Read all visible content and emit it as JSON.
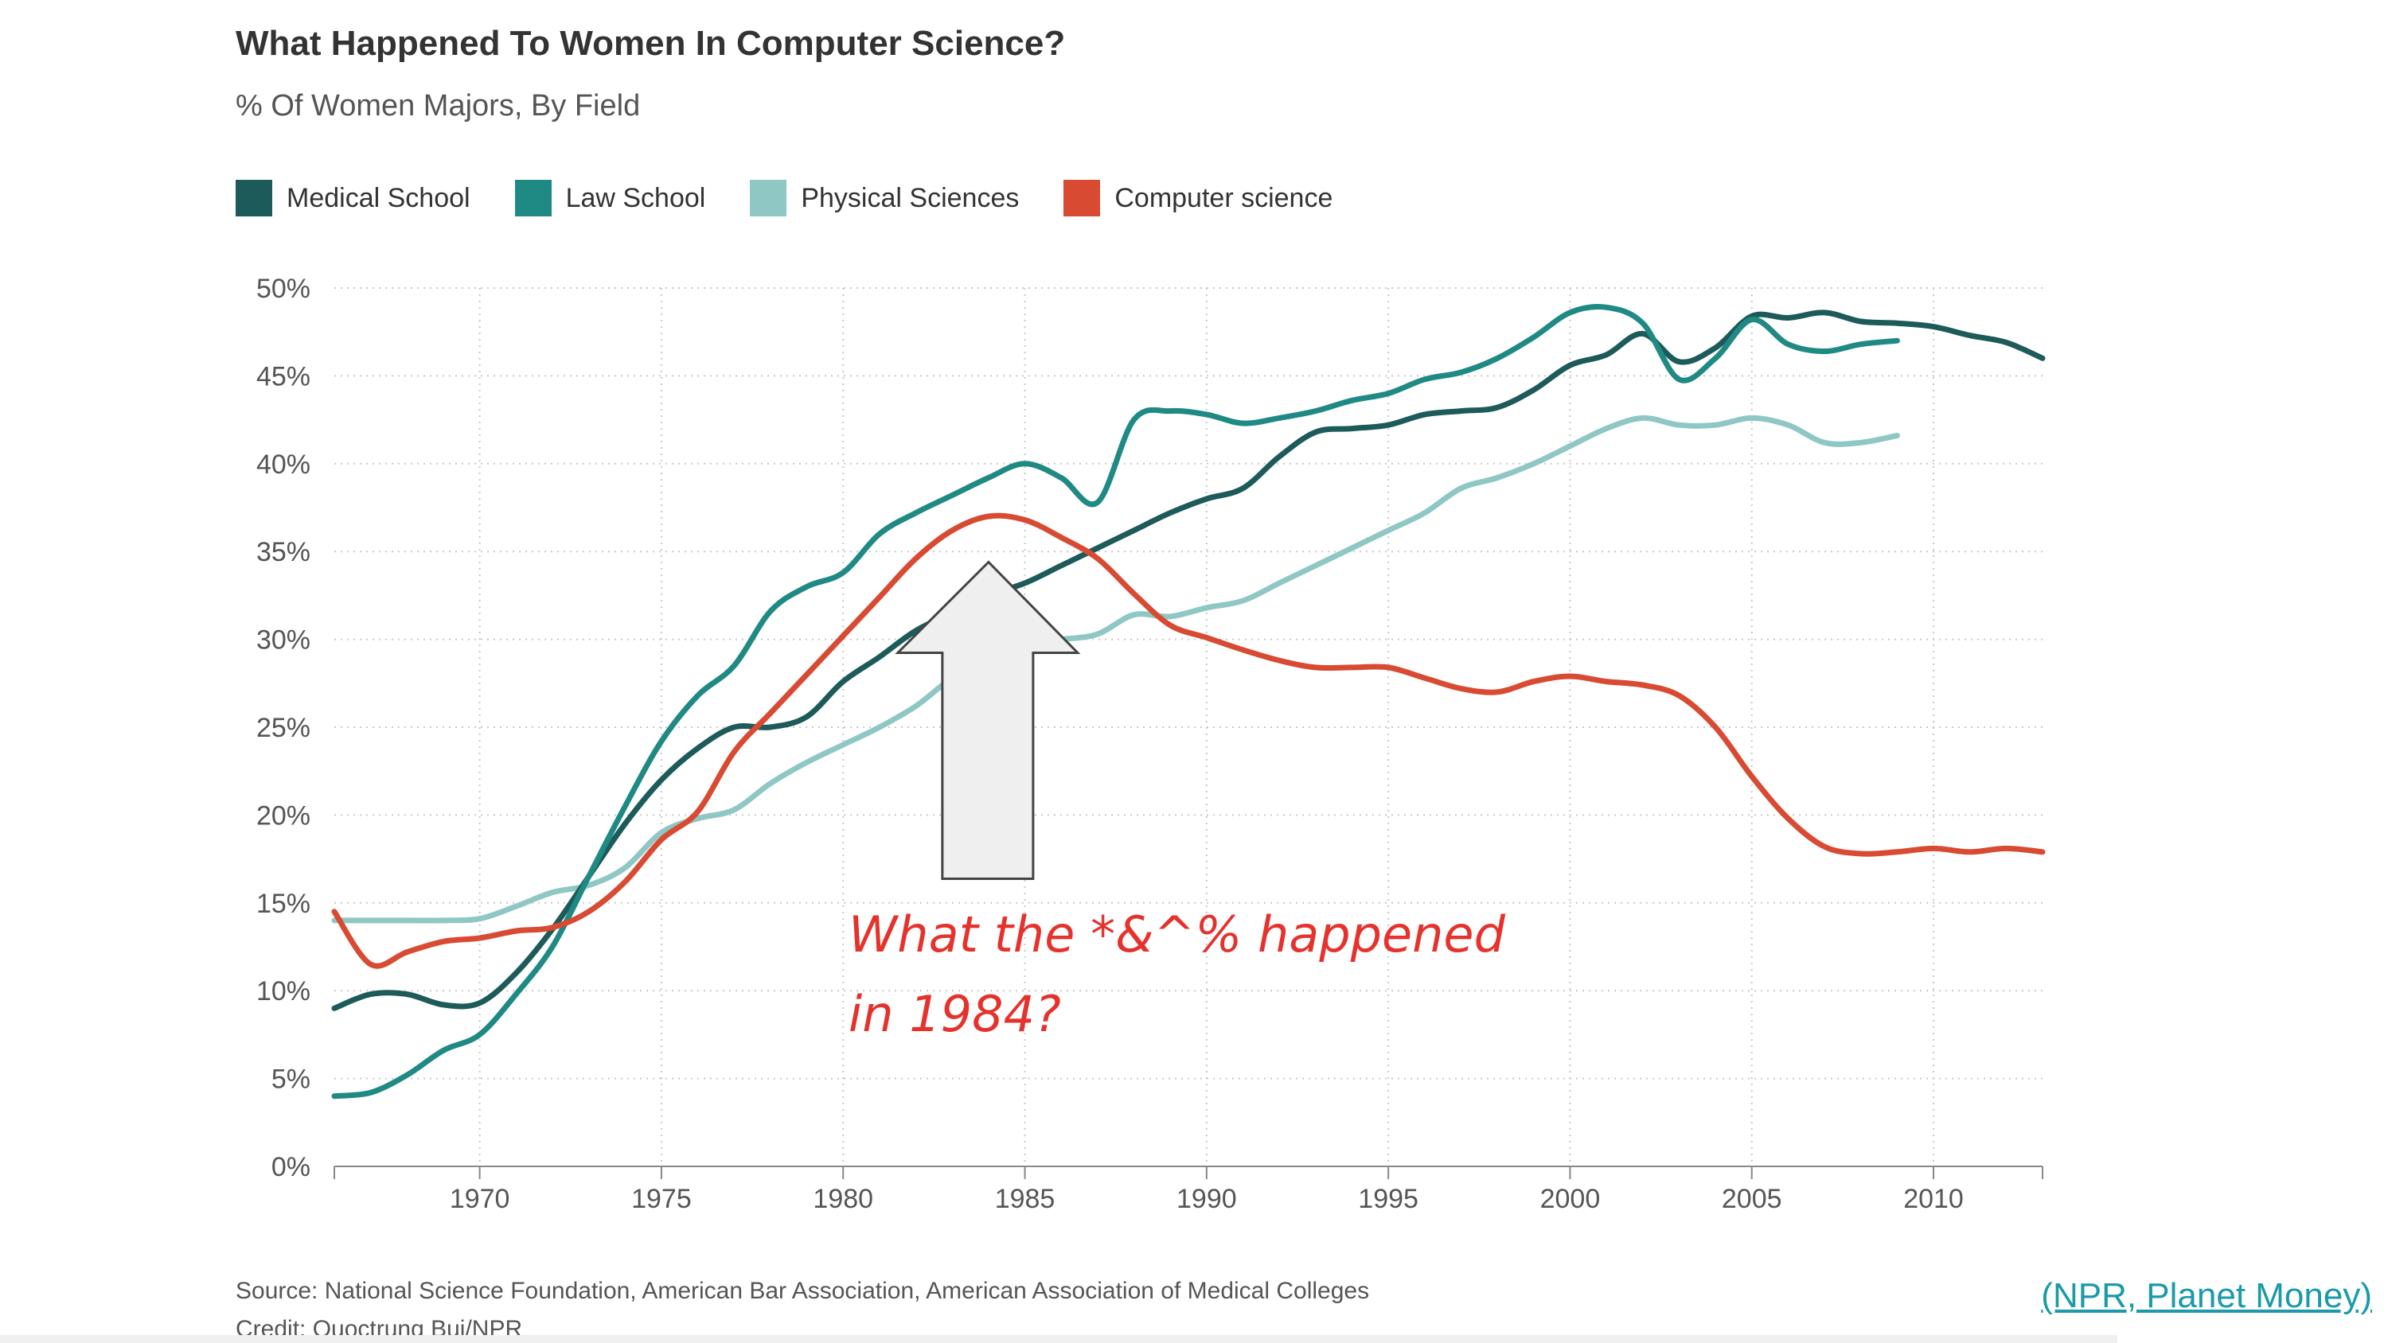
{
  "title": "What Happened To Women In Computer Science?",
  "subtitle": "% Of Women Majors, By Field",
  "source": "Source: National Science Foundation, American Bar Association, American Association of Medical Colleges",
  "credit": "Credit: Quoctrung Bui/NPR",
  "link_text": "(NPR, Planet Money)",
  "annotation": [
    "What the *&^% happened",
    "in 1984?"
  ],
  "colors": {
    "medical": "#1c5b5a",
    "law": "#1f8a84",
    "physical": "#8fc7c4",
    "cs": "#d84a32",
    "annotation": "#e5322d"
  },
  "chart_data": {
    "type": "line",
    "title": "What Happened To Women In Computer Science?",
    "subtitle": "% Of Women Majors, By Field",
    "xlim": [
      1966,
      2013
    ],
    "ylim": [
      0,
      50
    ],
    "x_ticks": [
      1970,
      1975,
      1980,
      1985,
      1990,
      1995,
      2000,
      2005,
      2010
    ],
    "y_ticks": [
      "0%",
      "5%",
      "10%",
      "15%",
      "20%",
      "25%",
      "30%",
      "35%",
      "40%",
      "45%",
      "50%"
    ],
    "grid": true,
    "legend": "top-left",
    "series": [
      {
        "name": "Medical School",
        "color": "#1c5b5a",
        "x": [
          1966,
          1967,
          1968,
          1969,
          1970,
          1971,
          1972,
          1973,
          1974,
          1975,
          1976,
          1977,
          1978,
          1979,
          1980,
          1981,
          1982,
          1983,
          1984,
          1985,
          1986,
          1987,
          1988,
          1989,
          1990,
          1991,
          1992,
          1993,
          1994,
          1995,
          1996,
          1997,
          1998,
          1999,
          2000,
          2001,
          2002,
          2003,
          2004,
          2005,
          2006,
          2007,
          2008,
          2009,
          2010,
          2011,
          2012,
          2013
        ],
        "y": [
          9.0,
          9.8,
          9.8,
          9.2,
          9.3,
          11.0,
          13.5,
          16.5,
          19.5,
          22.0,
          23.8,
          25.0,
          25.0,
          25.6,
          27.6,
          29.0,
          30.5,
          31.5,
          32.5,
          33.2,
          34.2,
          35.2,
          36.2,
          37.2,
          38.0,
          38.6,
          40.4,
          41.8,
          42.0,
          42.2,
          42.8,
          43.0,
          43.2,
          44.2,
          45.6,
          46.2,
          47.4,
          45.8,
          46.6,
          48.4,
          48.3,
          48.6,
          48.1,
          48.0,
          47.8,
          47.3,
          46.9,
          46.0
        ]
      },
      {
        "name": "Law School",
        "color": "#1f8a84",
        "x": [
          1966,
          1967,
          1968,
          1969,
          1970,
          1971,
          1972,
          1973,
          1974,
          1975,
          1976,
          1977,
          1978,
          1979,
          1980,
          1981,
          1982,
          1983,
          1984,
          1985,
          1986,
          1987,
          1988,
          1989,
          1990,
          1991,
          1992,
          1993,
          1994,
          1995,
          1996,
          1997,
          1998,
          1999,
          2000,
          2001,
          2002,
          2003,
          2004,
          2005,
          2006,
          2007,
          2008,
          2009
        ],
        "y": [
          4.0,
          4.2,
          5.2,
          6.6,
          7.5,
          9.8,
          12.5,
          16.5,
          20.5,
          24.2,
          26.8,
          28.5,
          31.6,
          33.0,
          33.8,
          36.0,
          37.2,
          38.2,
          39.2,
          40.0,
          39.2,
          37.8,
          42.5,
          43.0,
          42.8,
          42.3,
          42.6,
          43.0,
          43.6,
          44.0,
          44.8,
          45.2,
          46.0,
          47.2,
          48.6,
          48.9,
          48.0,
          44.8,
          46.0,
          48.2,
          46.8,
          46.4,
          46.8,
          47.0
        ]
      },
      {
        "name": "Physical Sciences",
        "color": "#8fc7c4",
        "x": [
          1966,
          1967,
          1968,
          1969,
          1970,
          1971,
          1972,
          1973,
          1974,
          1975,
          1976,
          1977,
          1978,
          1979,
          1980,
          1981,
          1982,
          1983,
          1984,
          1985,
          1986,
          1987,
          1988,
          1989,
          1990,
          1991,
          1992,
          1993,
          1994,
          1995,
          1996,
          1997,
          1998,
          1999,
          2000,
          2001,
          2002,
          2003,
          2004,
          2005,
          2006,
          2007,
          2008,
          2009
        ],
        "y": [
          14.0,
          14.0,
          14.0,
          14.0,
          14.1,
          14.8,
          15.6,
          16.0,
          17.0,
          19.0,
          19.8,
          20.3,
          21.8,
          23.0,
          24.0,
          25.0,
          26.2,
          27.8,
          28.8,
          29.8,
          30.0,
          30.3,
          31.4,
          31.3,
          31.8,
          32.2,
          33.2,
          34.2,
          35.2,
          36.2,
          37.2,
          38.6,
          39.2,
          40.0,
          41.0,
          42.0,
          42.6,
          42.2,
          42.2,
          42.6,
          42.2,
          41.2,
          41.2,
          41.6
        ]
      },
      {
        "name": "Computer science",
        "color": "#d84a32",
        "x": [
          1966,
          1967,
          1968,
          1969,
          1970,
          1971,
          1972,
          1973,
          1974,
          1975,
          1976,
          1977,
          1978,
          1979,
          1980,
          1981,
          1982,
          1983,
          1984,
          1985,
          1986,
          1987,
          1988,
          1989,
          1990,
          1991,
          1992,
          1993,
          1994,
          1995,
          1996,
          1997,
          1998,
          1999,
          2000,
          2001,
          2002,
          2003,
          2004,
          2005,
          2006,
          2007,
          2008,
          2009,
          2010,
          2011,
          2012,
          2013
        ],
        "y": [
          14.5,
          11.5,
          12.2,
          12.8,
          13.0,
          13.4,
          13.6,
          14.5,
          16.2,
          18.6,
          20.2,
          23.6,
          25.8,
          28.0,
          30.2,
          32.4,
          34.6,
          36.2,
          37.0,
          36.8,
          35.8,
          34.6,
          32.6,
          30.8,
          30.1,
          29.4,
          28.8,
          28.4,
          28.4,
          28.4,
          27.8,
          27.2,
          27.0,
          27.6,
          27.9,
          27.6,
          27.4,
          26.8,
          25.0,
          22.2,
          19.8,
          18.2,
          17.8,
          17.9,
          18.1,
          17.9,
          18.1,
          17.9
        ]
      }
    ]
  }
}
